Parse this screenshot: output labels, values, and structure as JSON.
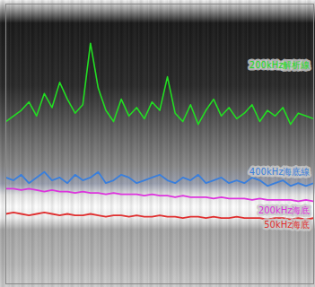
{
  "chart_data": {
    "type": "line",
    "tick_labels": false,
    "xlim": [
      0,
      100
    ],
    "ylim": [
      0,
      100
    ],
    "x": [
      0,
      2.5,
      5,
      7.5,
      10,
      12.5,
      15,
      17.5,
      20,
      22.5,
      25,
      27.5,
      30,
      32.5,
      35,
      37.5,
      40,
      42.5,
      45,
      47.5,
      50,
      52.5,
      55,
      57.5,
      60,
      62.5,
      65,
      67.5,
      70,
      72.5,
      75,
      77.5,
      80,
      82.5,
      85,
      87.5,
      90,
      92.5,
      95,
      97.5,
      100
    ],
    "series": [
      {
        "name": "200kHz解析線",
        "color": "#22dd22",
        "values": [
          58,
          60,
          62,
          65,
          60,
          68,
          63,
          72,
          66,
          61,
          64,
          86,
          70,
          62,
          58,
          66,
          60,
          63,
          59,
          65,
          62,
          74,
          61,
          58,
          64,
          57,
          62,
          66,
          60,
          63,
          59,
          61,
          64,
          58,
          62,
          60,
          63,
          57,
          61,
          60,
          59
        ]
      },
      {
        "name": "400kHz海底線",
        "color": "#3a7fdc",
        "values": [
          38,
          37,
          39,
          36,
          38,
          40,
          37,
          38,
          36,
          39,
          37,
          38,
          40,
          36,
          37,
          39,
          38,
          36,
          37,
          38,
          39,
          37,
          36,
          38,
          37,
          39,
          36,
          37,
          38,
          36,
          37,
          36,
          38,
          37,
          35,
          36,
          37,
          35,
          36,
          35,
          36
        ]
      },
      {
        "name": "200kHz海底",
        "color": "#dd33dd",
        "values": [
          34,
          34,
          33.5,
          34,
          33.5,
          33,
          33.5,
          33,
          33,
          32.5,
          33,
          32.5,
          32.5,
          32,
          32.5,
          32,
          32,
          32,
          31.5,
          32,
          31.5,
          31.5,
          31,
          31.5,
          31,
          31,
          31,
          30.5,
          31,
          30.5,
          30.5,
          30.5,
          30,
          30.5,
          30,
          30,
          30,
          30,
          29.5,
          30,
          29.5
        ]
      },
      {
        "name": "50kHz海底",
        "color": "#e03030",
        "values": [
          25,
          25.5,
          25,
          24.5,
          25,
          25.5,
          25,
          24.5,
          25,
          24.5,
          24.5,
          25,
          24.5,
          24,
          24.5,
          24.5,
          24,
          24.5,
          24,
          24,
          24.5,
          24,
          24,
          23.5,
          24,
          24,
          23.5,
          24,
          23.5,
          23.5,
          24,
          23.5,
          23.5,
          23.5,
          23,
          23.5,
          23.5,
          23,
          23.5,
          23,
          23.5
        ]
      }
    ]
  }
}
